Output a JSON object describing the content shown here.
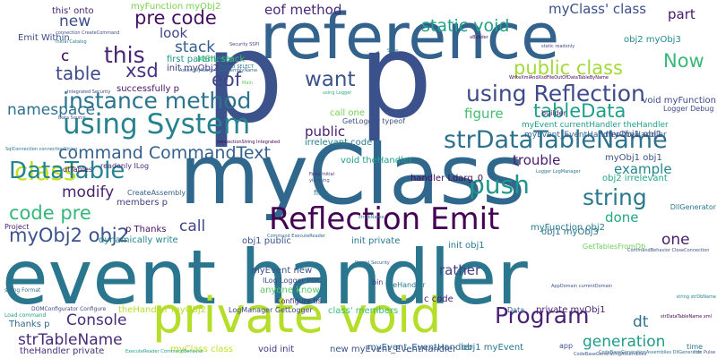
{
  "words": [
    {
      "text": "event handler",
      "color": "#2a768e"
    },
    {
      "text": "myClass",
      "color": "#30678d"
    },
    {
      "text": "reference",
      "color": "#33638d"
    },
    {
      "text": "p",
      "color": "#3b528b"
    },
    {
      "text": "p",
      "color": "#3b518b"
    },
    {
      "text": "private void",
      "color": "#b5de2b"
    },
    {
      "text": "Reflection Emit",
      "color": "#440154"
    },
    {
      "text": "using System",
      "color": "#26828e"
    },
    {
      "text": "strDataTableName",
      "color": "#2c718e"
    },
    {
      "text": "using Reflection",
      "color": "#3e4a89"
    },
    {
      "text": "instance method",
      "color": "#2c738e"
    },
    {
      "text": "command CommandText",
      "color": "#34608d"
    },
    {
      "text": "tableData",
      "color": "#1f9f88"
    },
    {
      "text": "class",
      "color": "#c2df23"
    },
    {
      "text": "push",
      "color": "#1f978b"
    },
    {
      "text": "string",
      "color": "#297a8e"
    },
    {
      "text": "DataTable",
      "color": "#25858e"
    },
    {
      "text": "myObj2 obj2",
      "color": "#3b528b"
    },
    {
      "text": "code pre",
      "color": "#35b779"
    },
    {
      "text": "Program",
      "color": "#482173"
    },
    {
      "text": "want",
      "color": "#3a538b"
    },
    {
      "text": "this",
      "color": "#482576"
    },
    {
      "text": "eof",
      "color": "#414487"
    },
    {
      "text": "xsd",
      "color": "#453581"
    },
    {
      "text": "Now",
      "color": "#38b977"
    },
    {
      "text": "static void",
      "color": "#20a386"
    },
    {
      "text": "public class",
      "color": "#a2da37"
    },
    {
      "text": "myClass' class",
      "color": "#3c4f8a"
    },
    {
      "text": "eof method",
      "color": "#482878"
    },
    {
      "text": "pre code",
      "color": "#471063"
    },
    {
      "text": "table",
      "color": "#3e4989"
    },
    {
      "text": "stack",
      "color": "#355e8d"
    },
    {
      "text": "namespace",
      "color": "#2d708e"
    },
    {
      "text": "look",
      "color": "#3f4788"
    },
    {
      "text": "new",
      "color": "#3d4e8a"
    },
    {
      "text": "c",
      "color": "#440154"
    },
    {
      "text": "part",
      "color": "#48186a"
    },
    {
      "text": "Console",
      "color": "#472d7b"
    },
    {
      "text": "strTableName",
      "color": "#472a7a"
    },
    {
      "text": "generation",
      "color": "#1f9e89"
    },
    {
      "text": "call",
      "color": "#404688"
    },
    {
      "text": "modify",
      "color": "#482374"
    },
    {
      "text": "one",
      "color": "#481c6e"
    },
    {
      "text": "dt",
      "color": "#2c728e"
    },
    {
      "text": "example",
      "color": "#24868e"
    },
    {
      "text": "done",
      "color": "#22a884"
    },
    {
      "text": "figure",
      "color": "#44bf70"
    },
    {
      "text": "trouble",
      "color": "#481a6c"
    },
    {
      "text": "rather",
      "color": "#433e85"
    },
    {
      "text": "public",
      "color": "#481f70"
    },
    {
      "text": "myFunction obj2",
      "color": "#2a788e"
    },
    {
      "text": "myObj1 obj1",
      "color": "#3b528b"
    },
    {
      "text": "obj2 irrelevant",
      "color": "#22a785"
    },
    {
      "text": "call one",
      "color": "#75d054"
    },
    {
      "text": "irrelevant code",
      "color": "#277f8e"
    },
    {
      "text": "void theHandler",
      "color": "#1fa187"
    },
    {
      "text": "myEvent_EventHandler",
      "color": "#31688e"
    },
    {
      "text": "myEvent_EventHandler theHandler",
      "color": "#33638d"
    },
    {
      "text": "myEvent currentHandler theHandler",
      "color": "#1e9c89"
    },
    {
      "text": "myObj1 obj1",
      "color": "#3d4d8a"
    },
    {
      "text": "init obj1",
      "color": "#277e8e"
    },
    {
      "text": "obj1 public",
      "color": "#3b528b"
    },
    {
      "text": "init private",
      "color": "#2a788e"
    },
    {
      "text": "obj1 myObj3",
      "color": "#2c728e"
    },
    {
      "text": "anyone know",
      "color": "#5ac864"
    },
    {
      "text": "myEvent new",
      "color": "#3a538b"
    },
    {
      "text": "void init",
      "color": "#46327e"
    },
    {
      "text": "private myObj1",
      "color": "#481f70"
    },
    {
      "text": "Thanks p",
      "color": "#31688e"
    },
    {
      "text": "theHandler private",
      "color": "#472e7c"
    },
    {
      "text": "theHandler myObj2",
      "color": "#b5de2b"
    },
    {
      "text": "myClass class",
      "color": "#c2df23"
    },
    {
      "text": "obj1 myEvent",
      "color": "#2a768e"
    },
    {
      "text": "new myEvent_EventHandler",
      "color": "#3b528b"
    },
    {
      "text": "class' members",
      "color": "#3bbb75"
    },
    {
      "text": "members p",
      "color": "#433d84"
    },
    {
      "text": "dynamically write",
      "color": "#25848e"
    },
    {
      "text": "p Thanks",
      "color": "#471063"
    },
    {
      "text": "successfully p",
      "color": "#481467"
    },
    {
      "text": "first parameter",
      "color": "#20928c"
    },
    {
      "text": "this' onto",
      "color": "#482173"
    },
    {
      "text": "Emit Within",
      "color": "#3c4f8a"
    },
    {
      "text": "MSIL stack",
      "color": "#3dbc74"
    },
    {
      "text": "init myObj2",
      "color": "#46327e"
    },
    {
      "text": "myFunction myObj2",
      "color": "#7ad151"
    },
    {
      "text": "obj2 myObj3",
      "color": "#238a8d"
    },
    {
      "text": "void myFunction",
      "color": "#3e4989"
    },
    {
      "text": "handler Ldarg_0",
      "color": "#460b5e"
    },
    {
      "text": "c code",
      "color": "#481d6f"
    },
    {
      "text": "Configure tis",
      "color": "#472f7d"
    },
    {
      "text": "ILog Logger POC",
      "color": "#3d4d8a"
    },
    {
      "text": "LogManager GetLogger",
      "color": "#3f4788"
    },
    {
      "text": "Project",
      "color": "#481d6f"
    },
    {
      "text": "DOMConfigurator Configure",
      "color": "#414487"
    },
    {
      "text": "Load command",
      "color": "#1f9e89"
    },
    {
      "text": "string Format",
      "color": "#2d708e"
    },
    {
      "text": "files",
      "color": "#2c728e"
    },
    {
      "text": "bin",
      "color": "#46337f"
    },
    {
      "text": "app",
      "color": "#3b528b"
    },
    {
      "text": "Data",
      "color": "#31688e"
    },
    {
      "text": "DllGenerator",
      "color": "#2a788e"
    },
    {
      "text": "GetTablesFromDb",
      "color": "#6ece58"
    },
    {
      "text": "dtTables",
      "color": "#471365"
    },
    {
      "text": "readonly ILog",
      "color": "#472c7a"
    },
    {
      "text": "CreateAssembly",
      "color": "#355f8d"
    },
    {
      "text": "builder",
      "color": "#482071"
    },
    {
      "text": "Logger Debug",
      "color": "#3e4989"
    },
    {
      "text": "GetLogger typeof",
      "color": "#3b528b"
    },
    {
      "text": "Format SELECT",
      "color": "#2d708e"
    },
    {
      "text": "AssemblyName myAssemblyName",
      "color": "#31688e"
    },
    {
      "text": "Security SSPI",
      "color": "#404588"
    },
    {
      "text": "Initial Catalog",
      "color": "#2a788e"
    },
    {
      "text": "Data Source",
      "color": "#3b528b"
    },
    {
      "text": "connectionString Integrated",
      "color": "#440154"
    },
    {
      "text": "SqlConnection connectionString",
      "color": "#2c728e"
    },
    {
      "text": "connection CreateCommand",
      "color": "#3b528b"
    },
    {
      "text": "Main",
      "color": "#5ac864"
    },
    {
      "text": "using Logger",
      "color": "#27ad81"
    },
    {
      "text": "Logger LogManager",
      "color": "#2a788e"
    },
    {
      "text": "False Initial",
      "color": "#472f7d"
    },
    {
      "text": "yid using",
      "color": "#3b528b"
    },
    {
      "text": "Command ExecuteReader",
      "color": "#31688e"
    },
    {
      "text": "ExecuteReader CommandBehavior",
      "color": "#20a386"
    },
    {
      "text": "CommandBehavior CloseConnection",
      "color": "#3b528b"
    },
    {
      "text": "Save",
      "color": "#2d708e"
    },
    {
      "text": "aBuilder",
      "color": "#471365"
    },
    {
      "text": "static readonly",
      "color": "#3f4788"
    },
    {
      "text": "WriteXmlAndXsdFileOutOfDataTableByName",
      "color": "#440154"
    },
    {
      "text": "time",
      "color": "#2c728e"
    },
    {
      "text": "Info Pulse",
      "color": "#3b528b"
    },
    {
      "text": "Persist Security",
      "color": "#31688e"
    },
    {
      "text": "strDbName",
      "color": "#2a788e"
    },
    {
      "text": "AppDomain currentDomain",
      "color": "#3b528b"
    },
    {
      "text": "CodeBaseGenerationAssemblies DllGenerator",
      "color": "#2c728e"
    },
    {
      "text": "Integrated Security",
      "color": "#3f4788"
    },
    {
      "text": "string strDbName",
      "color": "#25848e"
    },
    {
      "text": "strDataTableName xml",
      "color": "#440154"
    },
    {
      "text": "CodeBaseGeneratingAssemblies",
      "color": "#3b528b"
    },
    {
      "text": "theHandler",
      "color": "#2a788e"
    }
  ]
}
